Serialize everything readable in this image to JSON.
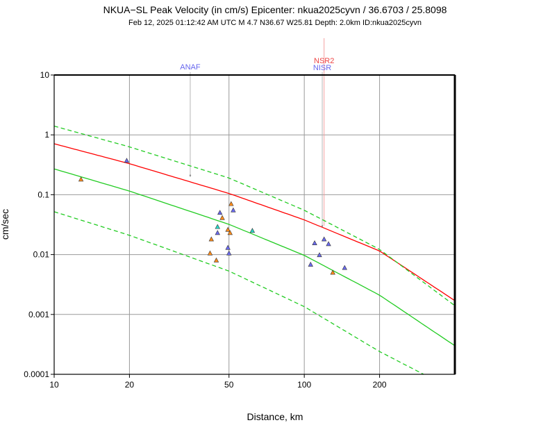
{
  "chart_data": {
    "type": "scatter",
    "title": "NKUA−SL Peak Velocity (in cm/s) Epicenter: nkua2025cyvn / 36.6703 / 25.8098",
    "subtitle": "Feb 12, 2025 01:12:42 AM UTC   M 4.7   N36.67 W25.81   Depth: 2.0km   ID:nkua2025cyvn",
    "xlabel": "Distance, km",
    "ylabel": "cm/sec",
    "xscale": "log",
    "yscale": "log",
    "xlim": [
      10,
      400
    ],
    "ylim": [
      0.0001,
      10
    ],
    "grid": true,
    "x_ticks": [
      {
        "value": 10,
        "label": "10"
      },
      {
        "value": 20,
        "label": "20"
      },
      {
        "value": 50,
        "label": "50"
      },
      {
        "value": 100,
        "label": "100"
      },
      {
        "value": 200,
        "label": "200"
      }
    ],
    "y_ticks": [
      {
        "value": 10,
        "label": "10"
      },
      {
        "value": 1,
        "label": "1"
      },
      {
        "value": 0.1,
        "label": "0.1"
      },
      {
        "value": 0.01,
        "label": "0.01"
      },
      {
        "value": 0.001,
        "label": "0.001"
      },
      {
        "value": 0.0001,
        "label": "0.0001"
      }
    ],
    "station_labels": [
      {
        "text": "ANAF",
        "x": 35,
        "color": "#6666ee"
      },
      {
        "text": "NSR2",
        "x": 120,
        "color": "#ee4444"
      },
      {
        "text": "NISR",
        "x": 118,
        "color": "#6666ee"
      }
    ],
    "series": [
      {
        "color": "#ff8c1a",
        "points": [
          {
            "x": 12.8,
            "y": 0.18
          },
          {
            "x": 42,
            "y": 0.0105
          },
          {
            "x": 42.5,
            "y": 0.018
          },
          {
            "x": 44.5,
            "y": 0.008
          },
          {
            "x": 47,
            "y": 0.041
          },
          {
            "x": 49.5,
            "y": 0.026
          },
          {
            "x": 50.5,
            "y": 0.023
          },
          {
            "x": 51,
            "y": 0.07
          },
          {
            "x": 130,
            "y": 0.005
          }
        ]
      },
      {
        "color": "#6a6aee",
        "points": [
          {
            "x": 19.5,
            "y": 0.37
          },
          {
            "x": 45,
            "y": 0.023
          },
          {
            "x": 46,
            "y": 0.05
          },
          {
            "x": 49.5,
            "y": 0.013
          },
          {
            "x": 50,
            "y": 0.0105
          },
          {
            "x": 52,
            "y": 0.055
          },
          {
            "x": 106,
            "y": 0.0068
          },
          {
            "x": 110,
            "y": 0.0155
          },
          {
            "x": 115,
            "y": 0.0098
          },
          {
            "x": 120,
            "y": 0.018
          },
          {
            "x": 125,
            "y": 0.015
          },
          {
            "x": 145,
            "y": 0.006
          }
        ]
      },
      {
        "color": "#2ad6c8",
        "points": [
          {
            "x": 45,
            "y": 0.029
          },
          {
            "x": 62,
            "y": 0.025
          }
        ]
      }
    ],
    "curves": [
      {
        "color": "#ff0000",
        "style": "solid",
        "points": [
          [
            10,
            0.71
          ],
          [
            20,
            0.33
          ],
          [
            50,
            0.105
          ],
          [
            100,
            0.038
          ],
          [
            200,
            0.0115
          ],
          [
            400,
            0.0017
          ]
        ]
      },
      {
        "color": "#22cc22",
        "style": "solid",
        "points": [
          [
            10,
            0.27
          ],
          [
            20,
            0.115
          ],
          [
            50,
            0.032
          ],
          [
            100,
            0.0097
          ],
          [
            200,
            0.0021
          ],
          [
            400,
            0.0003
          ]
        ]
      },
      {
        "color": "#22cc22",
        "style": "dashed",
        "points": [
          [
            10,
            1.4
          ],
          [
            20,
            0.63
          ],
          [
            50,
            0.19
          ],
          [
            100,
            0.055
          ],
          [
            200,
            0.0122
          ],
          [
            400,
            0.0014
          ]
        ]
      },
      {
        "color": "#22cc22",
        "style": "dashed",
        "points": [
          [
            10,
            0.052
          ],
          [
            20,
            0.021
          ],
          [
            50,
            0.0053
          ],
          [
            100,
            0.00135
          ],
          [
            200,
            0.00024
          ],
          [
            300,
            0.0001
          ]
        ]
      }
    ]
  }
}
